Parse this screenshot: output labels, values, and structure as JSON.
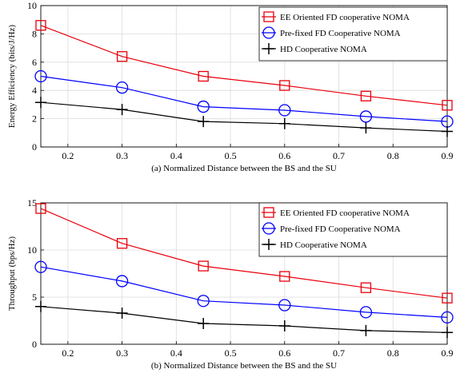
{
  "chart_data": [
    {
      "type": "line",
      "x": [
        0.15,
        0.3,
        0.45,
        0.6,
        0.75,
        0.9
      ],
      "xlim": [
        0.15,
        0.9
      ],
      "ylim": [
        0,
        10
      ],
      "xticks": [
        "0.2",
        "0.3",
        "0.4",
        "0.5",
        "0.6",
        "0.7",
        "0.8",
        "0.9"
      ],
      "yticks": [
        "0",
        "2",
        "4",
        "6",
        "8",
        "10"
      ],
      "xlabel": "(a) Normalized Distance between the BS and the SU",
      "ylabel": "Energy Efficiency (bits/J/Hz)",
      "grid": true,
      "legend_position": "top-right",
      "series": [
        {
          "name": "EE Oriented FD cooperative NOMA",
          "values": [
            8.6,
            6.4,
            5.0,
            4.35,
            3.6,
            2.95
          ],
          "color": "#e8000b",
          "marker": "square"
        },
        {
          "name": "Pre-fixed FD Cooperative NOMA",
          "values": [
            5.0,
            4.2,
            2.85,
            2.6,
            2.15,
            1.8
          ],
          "color": "#0000ff",
          "marker": "circle"
        },
        {
          "name": "HD Cooperative NOMA",
          "values": [
            3.15,
            2.65,
            1.8,
            1.65,
            1.35,
            1.1
          ],
          "color": "#000000",
          "marker": "plus"
        }
      ]
    },
    {
      "type": "line",
      "x": [
        0.15,
        0.3,
        0.45,
        0.6,
        0.75,
        0.9
      ],
      "xlim": [
        0.15,
        0.9
      ],
      "ylim": [
        0,
        15
      ],
      "xticks": [
        "0.2",
        "0.3",
        "0.4",
        "0.5",
        "0.6",
        "0.7",
        "0.8",
        "0.9"
      ],
      "yticks": [
        "0",
        "5",
        "10",
        "15"
      ],
      "xlabel": "(b) Normalized Distance between the BS and the SU",
      "ylabel": "Throughput (bps/Hz)",
      "grid": true,
      "legend_position": "top-right",
      "series": [
        {
          "name": "EE Oriented FD cooperative NOMA",
          "values": [
            14.4,
            10.7,
            8.3,
            7.2,
            6.0,
            4.9
          ],
          "color": "#e8000b",
          "marker": "square"
        },
        {
          "name": "Pre-fixed FD Cooperative NOMA",
          "values": [
            8.2,
            6.7,
            4.6,
            4.15,
            3.4,
            2.85
          ],
          "color": "#0000ff",
          "marker": "circle"
        },
        {
          "name": "HD Cooperative NOMA",
          "values": [
            4.0,
            3.3,
            2.2,
            1.95,
            1.45,
            1.25
          ],
          "color": "#000000",
          "marker": "plus"
        }
      ]
    }
  ]
}
